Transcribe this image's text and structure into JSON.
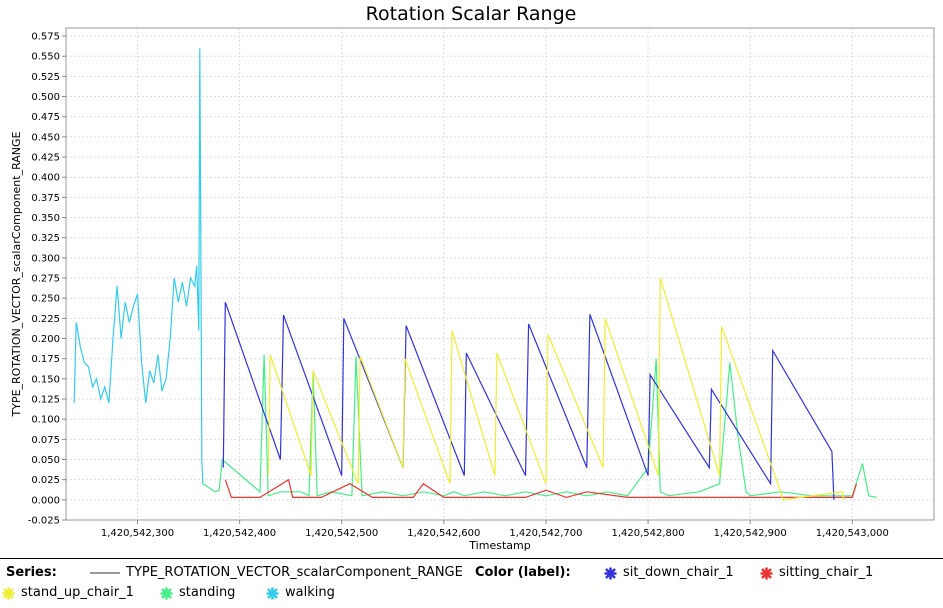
{
  "chart_data": {
    "type": "line",
    "title": "Rotation Scalar Range",
    "xlabel": "Timestamp",
    "ylabel": "TYPE_ROTATION_VECTOR_scalarComponent_RANGE",
    "xlim": [
      1420542230,
      1420543080
    ],
    "ylim": [
      -0.025,
      0.585
    ],
    "x_ticks": [
      1420542300,
      1420542400,
      1420542500,
      1420542600,
      1420542700,
      1420542800,
      1420542900,
      1420543000
    ],
    "x_tick_labels": [
      "1,420,542,300",
      "1,420,542,400",
      "1,420,542,500",
      "1,420,542,600",
      "1,420,542,700",
      "1,420,542,800",
      "1,420,542,900",
      "1,420,543,000"
    ],
    "y_ticks": [
      -0.025,
      0.0,
      0.025,
      0.05,
      0.075,
      0.1,
      0.125,
      0.15,
      0.175,
      0.2,
      0.225,
      0.25,
      0.275,
      0.3,
      0.325,
      0.35,
      0.375,
      0.4,
      0.425,
      0.45,
      0.475,
      0.5,
      0.525,
      0.55,
      0.575
    ],
    "y_tick_labels": [
      "-0.025",
      "0.000",
      "0.025",
      "0.050",
      "0.075",
      "0.100",
      "0.125",
      "0.150",
      "0.175",
      "0.200",
      "0.225",
      "0.250",
      "0.275",
      "0.300",
      "0.325",
      "0.350",
      "0.375",
      "0.400",
      "0.425",
      "0.450",
      "0.475",
      "0.500",
      "0.525",
      "0.550",
      "0.575"
    ],
    "grid": true,
    "series_line": {
      "name": "TYPE_ROTATION_VECTOR_scalarComponent_RANGE",
      "color": "#999999"
    },
    "series": [
      {
        "name": "walking",
        "color": "#33ccee",
        "x": [
          1420542238,
          1420542240,
          1420542244,
          1420542248,
          1420542252,
          1420542256,
          1420542260,
          1420542264,
          1420542268,
          1420542272,
          1420542276,
          1420542280,
          1420542284,
          1420542288,
          1420542292,
          1420542296,
          1420542300,
          1420542304,
          1420542308,
          1420542312,
          1420542316,
          1420542320,
          1420542324,
          1420542328,
          1420542332,
          1420542336,
          1420542340,
          1420542344,
          1420542348,
          1420542352,
          1420542356,
          1420542358,
          1420542360,
          1420542361,
          1420542362,
          1420542363,
          1420542364
        ],
        "y": [
          0.12,
          0.22,
          0.19,
          0.17,
          0.165,
          0.14,
          0.15,
          0.125,
          0.14,
          0.12,
          0.2,
          0.265,
          0.2,
          0.245,
          0.22,
          0.24,
          0.255,
          0.17,
          0.12,
          0.16,
          0.145,
          0.18,
          0.135,
          0.15,
          0.2,
          0.275,
          0.245,
          0.27,
          0.24,
          0.275,
          0.265,
          0.29,
          0.21,
          0.56,
          0.33,
          0.05,
          0.02
        ]
      },
      {
        "name": "standing",
        "color": "#44ee88",
        "x": [
          1420542364,
          1420542370,
          1420542376,
          1420542380,
          1420542383,
          1420542420,
          1420542424,
          1420542428,
          1420542440,
          1420542460,
          1420542468,
          1420542472,
          1420542476,
          1420542490,
          1420542510,
          1420542514,
          1420542520,
          1420542540,
          1420542560,
          1420542580,
          1420542600,
          1420542610,
          1420542620,
          1420542640,
          1420542660,
          1420542680,
          1420542700,
          1420542720,
          1420542740,
          1420542760,
          1420542780,
          1420542800,
          1420542808,
          1420542812,
          1420542820,
          1420542850,
          1420542870,
          1420542880,
          1420542888,
          1420542896,
          1420542900,
          1420542930,
          1420542960,
          1420542980,
          1420543000,
          1420543010,
          1420543016,
          1420543024
        ],
        "y": [
          0.02,
          0.015,
          0.01,
          0.012,
          0.05,
          0.01,
          0.18,
          0.005,
          0.01,
          0.01,
          0.005,
          0.16,
          0.005,
          0.01,
          0.005,
          0.178,
          0.005,
          0.01,
          0.005,
          0.01,
          0.005,
          0.01,
          0.005,
          0.01,
          0.005,
          0.01,
          0.005,
          0.01,
          0.005,
          0.01,
          0.005,
          0.04,
          0.175,
          0.01,
          0.005,
          0.01,
          0.02,
          0.17,
          0.08,
          0.01,
          0.005,
          0.01,
          0.005,
          0.005,
          0.005,
          0.045,
          0.005,
          0.003
        ]
      },
      {
        "name": "sitting_chair_1",
        "color": "#ee3333",
        "x": [
          1420542386,
          1420542392,
          1420542420,
          1420542448,
          1420542452,
          1420542480,
          1420542508,
          1420542530,
          1420542570,
          1420542580,
          1420542600,
          1420542640,
          1420542680,
          1420542700,
          1420542720,
          1420542740,
          1420542780,
          1420542820,
          1420542840,
          1420542860,
          1420542900,
          1420542920,
          1420542960,
          1420543000,
          1420543004
        ],
        "y": [
          0.025,
          0.003,
          0.003,
          0.025,
          0.003,
          0.003,
          0.02,
          0.003,
          0.003,
          0.02,
          0.003,
          0.003,
          0.003,
          0.012,
          0.003,
          0.01,
          0.003,
          0.003,
          0.003,
          0.003,
          0.003,
          0.003,
          0.003,
          0.003,
          0.02
        ]
      },
      {
        "name": "sit_down_chair_1",
        "color": "#3333dd",
        "x": [
          1420542384,
          1420542386,
          1420542440,
          1420542443,
          1420542500,
          1420542502,
          1420542560,
          1420542563,
          1420542620,
          1420542622,
          1420542680,
          1420542683,
          1420542740,
          1420542743,
          1420542800,
          1420542802,
          1420542860,
          1420542862,
          1420542920,
          1420542922,
          1420542980,
          1420542982
        ],
        "y": [
          0.04,
          0.245,
          0.05,
          0.229,
          0.03,
          0.225,
          0.04,
          0.216,
          0.03,
          0.182,
          0.03,
          0.218,
          0.04,
          0.23,
          0.03,
          0.155,
          0.04,
          0.137,
          0.02,
          0.185,
          0.06,
          0.0
        ]
      },
      {
        "name": "stand_up_chair_1",
        "color": "#eeee33",
        "x": [
          1420542428,
          1420542430,
          1420542470,
          1420542472,
          1420542516,
          1420542518,
          1420542560,
          1420542562,
          1420542606,
          1420542608,
          1420542650,
          1420542652,
          1420542700,
          1420542702,
          1420542756,
          1420542758,
          1420542810,
          1420542812,
          1420542870,
          1420542872,
          1420542930,
          1420542932,
          1420542990,
          1420542992
        ],
        "y": [
          0.03,
          0.18,
          0.03,
          0.16,
          0.02,
          0.178,
          0.04,
          0.175,
          0.02,
          0.21,
          0.03,
          0.182,
          0.02,
          0.205,
          0.04,
          0.225,
          0.03,
          0.275,
          0.03,
          0.215,
          0.01,
          0.0,
          0.01,
          0.0
        ]
      }
    ]
  },
  "legend": {
    "series_heading": "Series:",
    "series_name": "TYPE_ROTATION_VECTOR_scalarComponent_RANGE",
    "color_heading": "Color (label):",
    "items": [
      {
        "label": "sit_down_chair_1",
        "color": "#3333dd"
      },
      {
        "label": "sitting_chair_1",
        "color": "#ee3333"
      },
      {
        "label": "stand_up_chair_1",
        "color": "#eeee33"
      },
      {
        "label": "standing",
        "color": "#44ee88"
      },
      {
        "label": "walking",
        "color": "#33ccee"
      }
    ]
  }
}
